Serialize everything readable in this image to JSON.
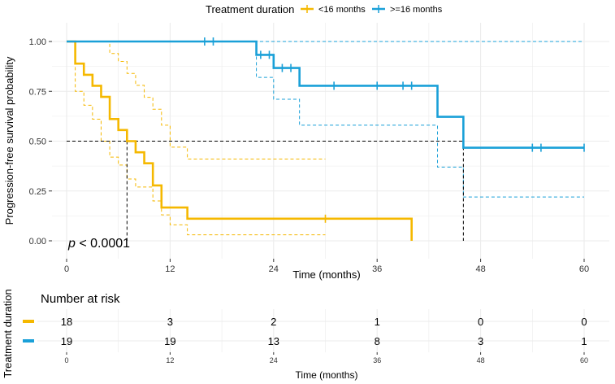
{
  "colors": {
    "short": "#f5b800",
    "long": "#1aa0d8",
    "grid": "#ebebeb",
    "median": "#000000"
  },
  "legend": {
    "title": "Treatment duration",
    "items": [
      {
        "label": "<16 months",
        "color": "#f5b800"
      },
      {
        "label": ">=16 months",
        "color": "#1aa0d8"
      }
    ]
  },
  "chart_data": {
    "type": "line",
    "title": "",
    "xlabel": "Time (months)",
    "ylabel": "Progression-free survival probability",
    "xlim": [
      0,
      60
    ],
    "ylim": [
      0,
      1
    ],
    "x_ticks": [
      0,
      12,
      24,
      36,
      48,
      60
    ],
    "x_tick_labels": [
      "0",
      "12",
      "24",
      "36",
      "48",
      "60"
    ],
    "y_ticks": [
      0,
      0.25,
      0.5,
      0.75,
      1
    ],
    "y_tick_labels": [
      "0.00",
      "0.25",
      "0.50",
      "0.75",
      "1.00"
    ],
    "grid": true,
    "legend_position": "top",
    "annotation": "p < 0.0001",
    "median_lines": [
      {
        "series": "<16 months",
        "time": 7
      },
      {
        "series": ">=16 months",
        "time": 46
      }
    ],
    "series": [
      {
        "name": "<16 months",
        "color": "#f5b800",
        "steps": [
          [
            0,
            1
          ],
          [
            1,
            0.889
          ],
          [
            2,
            0.833
          ],
          [
            3,
            0.778
          ],
          [
            4,
            0.722
          ],
          [
            5,
            0.611
          ],
          [
            6,
            0.556
          ],
          [
            7,
            0.5
          ],
          [
            8,
            0.444
          ],
          [
            9,
            0.389
          ],
          [
            10,
            0.278
          ],
          [
            11,
            0.167
          ],
          [
            14,
            0.111
          ],
          [
            40,
            0
          ]
        ],
        "end": 40,
        "censor": [
          [
            30,
            0.111
          ]
        ],
        "ci_upper": [
          [
            0,
            1
          ],
          [
            4,
            1
          ],
          [
            5,
            0.94
          ],
          [
            6,
            0.9
          ],
          [
            7,
            0.84
          ],
          [
            8,
            0.78
          ],
          [
            9,
            0.72
          ],
          [
            10,
            0.66
          ],
          [
            11,
            0.58
          ],
          [
            12,
            0.47
          ],
          [
            14,
            0.41
          ],
          [
            30,
            0.41
          ]
        ],
        "ci_lower": [
          [
            0,
            1
          ],
          [
            1,
            0.75
          ],
          [
            2,
            0.68
          ],
          [
            3,
            0.61
          ],
          [
            4,
            0.5
          ],
          [
            5,
            0.42
          ],
          [
            6,
            0.38
          ],
          [
            7,
            0.31
          ],
          [
            8,
            0.27
          ],
          [
            10,
            0.2
          ],
          [
            11,
            0.13
          ],
          [
            12,
            0.08
          ],
          [
            14,
            0.03
          ],
          [
            30,
            0.03
          ]
        ]
      },
      {
        "name": ">=16 months",
        "color": "#1aa0d8",
        "steps": [
          [
            0,
            1
          ],
          [
            22,
            0.933
          ],
          [
            24,
            0.867
          ],
          [
            27,
            0.778
          ],
          [
            43,
            0.622
          ],
          [
            46,
            0.467
          ]
        ],
        "end": 60,
        "censor": [
          [
            16,
            1
          ],
          [
            17,
            1
          ],
          [
            22.5,
            0.933
          ],
          [
            23.5,
            0.933
          ],
          [
            25,
            0.867
          ],
          [
            26,
            0.867
          ],
          [
            31,
            0.778
          ],
          [
            36,
            0.778
          ],
          [
            39,
            0.778
          ],
          [
            40,
            0.778
          ],
          [
            54,
            0.467
          ],
          [
            55,
            0.467
          ],
          [
            60,
            0.467
          ]
        ],
        "ci_upper": [
          [
            0,
            1
          ],
          [
            60,
            1
          ]
        ],
        "ci_lower": [
          [
            0,
            1
          ],
          [
            22,
            0.82
          ],
          [
            24,
            0.71
          ],
          [
            27,
            0.58
          ],
          [
            43,
            0.37
          ],
          [
            46,
            0.22
          ],
          [
            60,
            0.22
          ]
        ]
      }
    ]
  },
  "risk_table": {
    "title": "Number at risk",
    "ylabel": "Treatment duration",
    "xlabel": "Time (months)",
    "times": [
      0,
      12,
      24,
      36,
      48,
      60
    ],
    "time_labels": [
      "0",
      "12",
      "24",
      "36",
      "48",
      "60"
    ],
    "rows": [
      {
        "name": "<16 months",
        "color": "#f5b800",
        "values": [
          "18",
          "3",
          "2",
          "1",
          "0",
          "0"
        ]
      },
      {
        "name": ">=16 months",
        "color": "#1aa0d8",
        "values": [
          "19",
          "19",
          "13",
          "8",
          "3",
          "1"
        ]
      }
    ]
  }
}
